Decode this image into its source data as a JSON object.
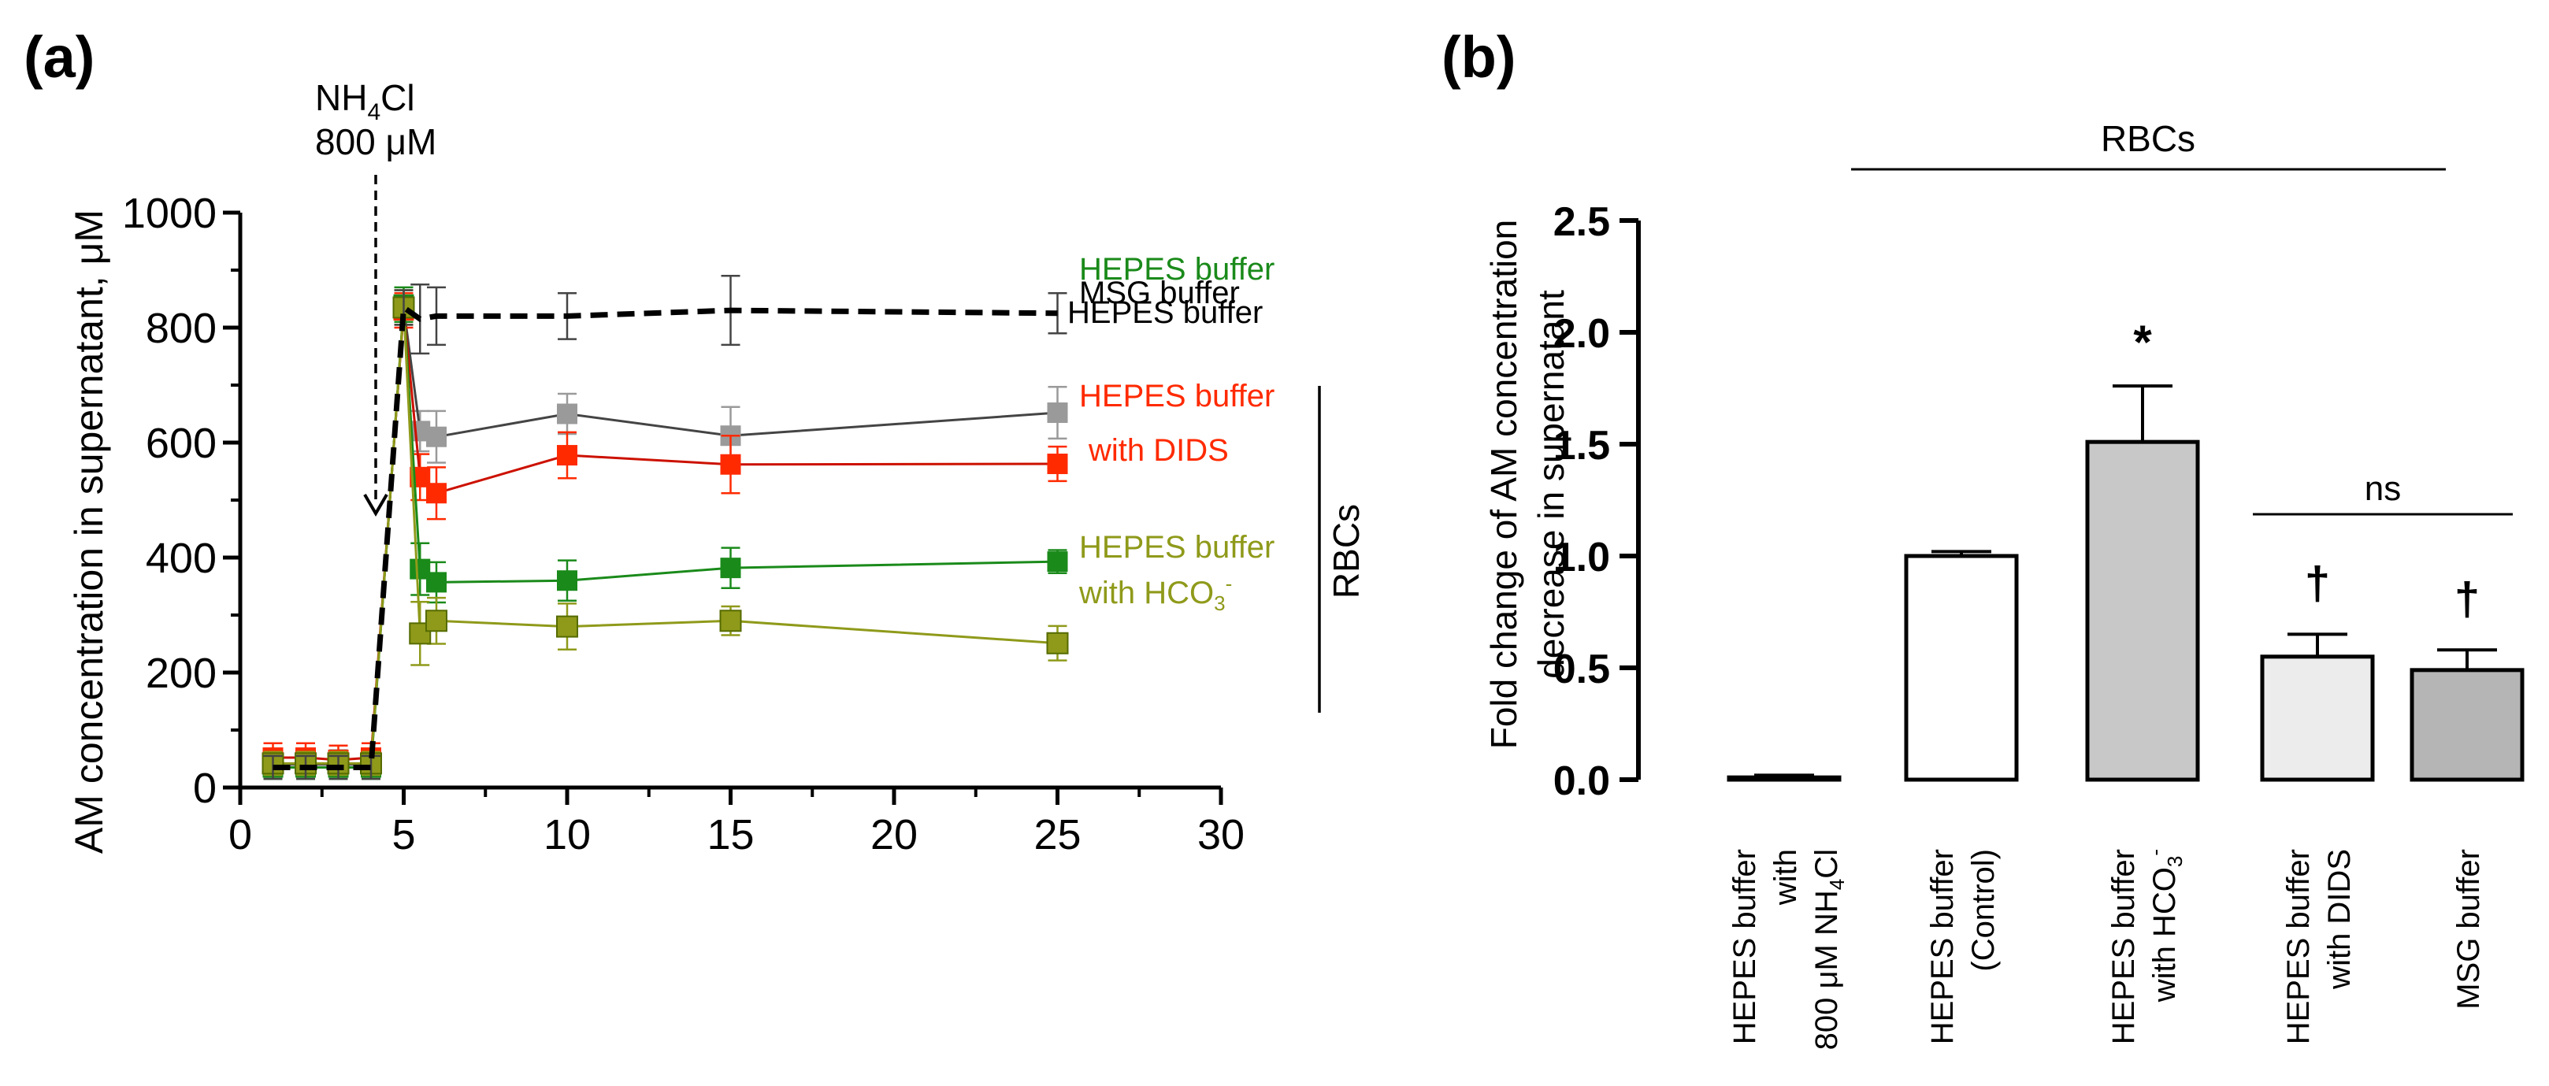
{
  "chart_data": [
    {
      "panel": "(a)",
      "type": "line",
      "ylabel": "AM concentration in supernatant, μM",
      "xlim": [
        0,
        30
      ],
      "ylim": [
        0,
        1000
      ],
      "xticks": [
        0,
        5,
        10,
        15,
        20,
        25,
        30
      ],
      "yticks": [
        0,
        200,
        400,
        600,
        800,
        1000
      ],
      "annotation": {
        "line1_main": "NH",
        "line1_sub": "4",
        "line1_tail": "Cl",
        "line2": "800 μM",
        "x": 4
      },
      "group_label": "RBCs",
      "series": [
        {
          "name": "MSG buffer",
          "color": "#9a9a9a",
          "marker": "#9a9a9a",
          "stroke": "#444444",
          "dash": false,
          "x": [
            1,
            2,
            3,
            4,
            5,
            5.5,
            6,
            10,
            15,
            25
          ],
          "y": [
            40,
            40,
            40,
            40,
            835,
            620,
            610,
            650,
            612,
            652
          ],
          "err": [
            25,
            25,
            25,
            25,
            30,
            35,
            45,
            35,
            50,
            45
          ],
          "label_lines": [
            "MSG buffer"
          ]
        },
        {
          "name": "HEPES buffer with DIDS",
          "color": "#ff2a00",
          "marker": "#ff2a00",
          "stroke": "#cc1100",
          "dash": false,
          "x": [
            1,
            2,
            3,
            4,
            5,
            5.5,
            6,
            10,
            15,
            25
          ],
          "y": [
            52,
            52,
            48,
            52,
            830,
            540,
            512,
            578,
            562,
            563
          ],
          "err": [
            25,
            25,
            25,
            25,
            30,
            40,
            45,
            40,
            50,
            30
          ],
          "label_lines": [
            "HEPES buffer",
            "with DIDS"
          ]
        },
        {
          "name": "HEPES buffer",
          "color": "#1a8a1a",
          "marker": "#1a8a1a",
          "stroke": "#1a8a1a",
          "dash": false,
          "x": [
            1,
            2,
            3,
            4,
            5,
            5.5,
            6,
            10,
            15,
            25
          ],
          "y": [
            35,
            35,
            35,
            35,
            840,
            380,
            357,
            360,
            382,
            393
          ],
          "err": [
            20,
            20,
            20,
            20,
            30,
            45,
            35,
            35,
            35,
            20
          ],
          "label_lines": [
            "HEPES buffer"
          ]
        },
        {
          "name": "HEPES buffer with HCO3-",
          "color": "#8f9a1a",
          "marker": "#8f9a1a",
          "stroke": "#8f9a1a",
          "dash": false,
          "x": [
            1,
            2,
            3,
            4,
            5,
            5.5,
            6,
            10,
            15,
            25
          ],
          "y": [
            42,
            42,
            42,
            42,
            835,
            268,
            290,
            280,
            290,
            251
          ],
          "err": [
            20,
            20,
            20,
            20,
            30,
            55,
            40,
            40,
            25,
            30
          ],
          "label_lines": [
            "HEPES buffer",
            "with HCO3-"
          ]
        },
        {
          "name": "HEPES buffer",
          "color": "#000000",
          "marker": "none",
          "stroke": "#000000",
          "dash": true,
          "x": [
            1,
            2,
            3,
            4,
            5,
            5.5,
            6,
            10,
            15,
            25
          ],
          "y": [
            35,
            35,
            35,
            35,
            835,
            815,
            820,
            820,
            830,
            825
          ],
          "err": [
            20,
            20,
            20,
            20,
            30,
            60,
            50,
            40,
            60,
            35
          ],
          "label_lines": [
            "HEPES buffer"
          ]
        }
      ]
    },
    {
      "panel": "(b)",
      "type": "bar",
      "ylabel_line1": "Fold change of AM concentration",
      "ylabel_line2": "decrease in supernatant",
      "ylim": [
        0,
        2.5
      ],
      "yticks": [
        "0.0",
        "0.5",
        "1.0",
        "1.5",
        "2.0",
        "2.5"
      ],
      "group_label": "RBCs",
      "ns_label": "ns",
      "categories": [
        {
          "lines": [
            "HEPES buffer",
            "with",
            "800 μM NH4Cl"
          ],
          "value": 0.01,
          "err": 0.01,
          "fill": "#ffffff",
          "mark": ""
        },
        {
          "lines": [
            "HEPES buffer",
            "(Control)"
          ],
          "value": 1.0,
          "err": 0.02,
          "fill": "#ffffff",
          "mark": ""
        },
        {
          "lines": [
            "HEPES buffer",
            "with HCO3-"
          ],
          "value": 1.51,
          "err": 0.25,
          "fill": "#c8c8c8",
          "mark": "*"
        },
        {
          "lines": [
            "HEPES buffer",
            "with DIDS"
          ],
          "value": 0.55,
          "err": 0.1,
          "fill": "#ececec",
          "mark": "†"
        },
        {
          "lines": [
            "MSG buffer"
          ],
          "value": 0.49,
          "err": 0.09,
          "fill": "#b5b5b5",
          "mark": "†"
        }
      ]
    }
  ]
}
